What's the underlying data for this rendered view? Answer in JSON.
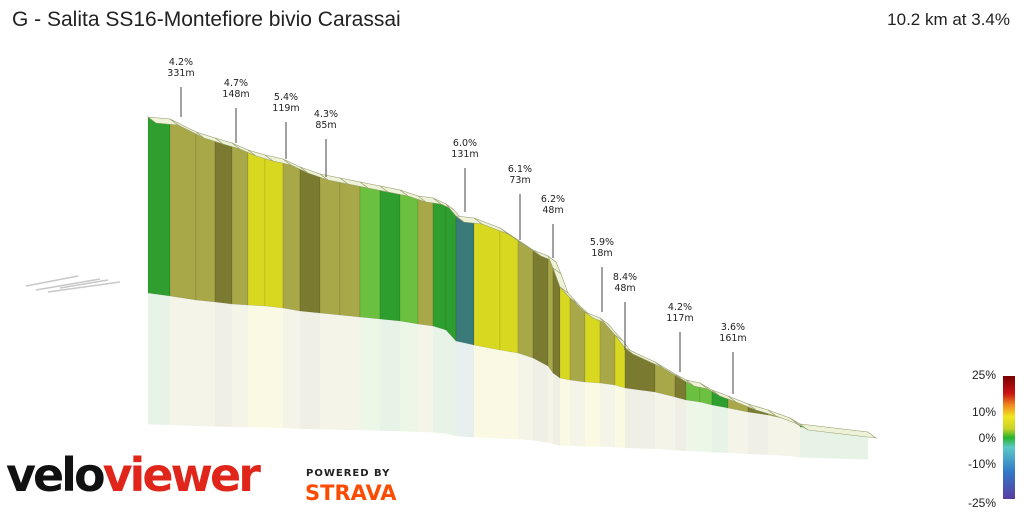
{
  "title": "G - Salita SS16-Montefiore bivio Carassai",
  "summary": "10.2 km at 3.4%",
  "branding": {
    "velo": "velo",
    "viewer": "viewer",
    "powered_by": "POWERED BY",
    "strava": "STRAVA"
  },
  "legend": {
    "labels": [
      "25%",
      "10%",
      "0%",
      "-10%",
      "-25%"
    ]
  },
  "chart_data": {
    "type": "area",
    "title": "G - Salita SS16-Montefiore bivio Carassai",
    "xlabel": "",
    "ylabel": "",
    "grid": false,
    "segment_labels": [
      {
        "grade": "4.2%",
        "length": "331m"
      },
      {
        "grade": "4.7%",
        "length": "148m"
      },
      {
        "grade": "5.4%",
        "length": "119m"
      },
      {
        "grade": "4.3%",
        "length": "85m"
      },
      {
        "grade": "6.0%",
        "length": "131m"
      },
      {
        "grade": "6.1%",
        "length": "73m"
      },
      {
        "grade": "6.2%",
        "length": "48m"
      },
      {
        "grade": "5.9%",
        "length": "18m"
      },
      {
        "grade": "8.4%",
        "length": "48m"
      },
      {
        "grade": "4.2%",
        "length": "117m"
      },
      {
        "grade": "3.6%",
        "length": "161m"
      }
    ],
    "colors": {
      "green": "#2e9e2e",
      "light_green": "#6cc040",
      "olive": "#a8a848",
      "yellow": "#d8d820",
      "dark_olive": "#7a7a30",
      "teal": "#3a7a78"
    }
  }
}
